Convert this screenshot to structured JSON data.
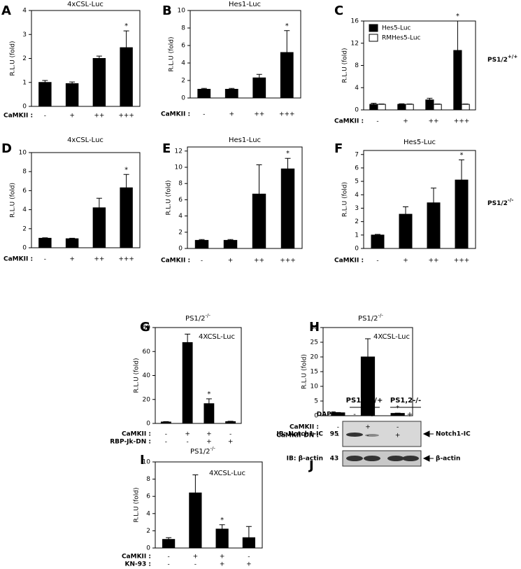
{
  "chart_data": [
    {
      "type": "bar",
      "panel": "A",
      "title": "4xCSL-Luc",
      "ylabel": "R.L.U (fold)",
      "ylim": [
        0,
        4
      ],
      "yticks": [
        0,
        1,
        2,
        3,
        4
      ],
      "series": [
        {
          "color": "#000000",
          "values": [
            1.0,
            0.95,
            2.0,
            2.45
          ],
          "errors": [
            0.08,
            0.07,
            0.1,
            0.7
          ],
          "significance": [
            null,
            null,
            null,
            "*"
          ]
        }
      ],
      "category_rows": [
        {
          "label": "CaMKII :",
          "values": [
            "-",
            "+",
            "++",
            "+++"
          ]
        }
      ]
    },
    {
      "type": "bar",
      "panel": "B",
      "title": "Hes1-Luc",
      "ylabel": "R.L.U (fold)",
      "ylim": [
        0,
        10
      ],
      "yticks": [
        0,
        2,
        4,
        6,
        8,
        10
      ],
      "series": [
        {
          "color": "#000000",
          "values": [
            1.0,
            1.0,
            2.3,
            5.2
          ],
          "errors": [
            0.1,
            0.1,
            0.4,
            2.5
          ],
          "significance": [
            null,
            null,
            null,
            "*"
          ]
        }
      ],
      "category_rows": [
        {
          "label": "CaMKII :",
          "values": [
            "-",
            "+",
            "++",
            "+++"
          ]
        }
      ]
    },
    {
      "type": "bar",
      "panel": "C",
      "ylabel": "R.L.U (fold)",
      "ylim": [
        0,
        16
      ],
      "yticks": [
        0,
        4,
        8,
        12,
        16
      ],
      "series": [
        {
          "name": "Hes5-Luc",
          "color": "#000000",
          "values": [
            1.0,
            1.0,
            1.8,
            10.7
          ],
          "errors": [
            0.2,
            0.1,
            0.3,
            5.3
          ],
          "significance": [
            null,
            null,
            null,
            "*"
          ]
        },
        {
          "name": "RMHes5-Luc",
          "color": "#ffffff",
          "values": [
            1.0,
            1.0,
            1.0,
            1.0
          ],
          "errors": [
            0.05,
            0.05,
            0.05,
            0.05
          ]
        }
      ],
      "category_rows": [
        {
          "label": "CaMKII :",
          "values": [
            "-",
            "+",
            "++",
            "+++"
          ]
        }
      ],
      "side_label": "PS1/2",
      "side_label_sup": "+/+"
    },
    {
      "type": "bar",
      "panel": "D",
      "title": "4xCSL-Luc",
      "ylabel": "R.L.U (fold)",
      "ylim": [
        0,
        10
      ],
      "yticks": [
        0,
        2,
        4,
        6,
        8,
        10
      ],
      "series": [
        {
          "color": "#000000",
          "values": [
            1.0,
            0.95,
            4.2,
            6.3
          ],
          "errors": [
            0.05,
            0.05,
            1.0,
            1.4
          ],
          "significance": [
            null,
            null,
            null,
            "*"
          ]
        }
      ],
      "category_rows": [
        {
          "label": "CaMKII :",
          "values": [
            "-",
            "+",
            "++",
            "+++"
          ]
        }
      ]
    },
    {
      "type": "bar",
      "panel": "E",
      "title": "Hes1-Luc",
      "ylabel": "R.L.U (fold)",
      "ylim": [
        0,
        12.5
      ],
      "yticks": [
        0,
        2,
        4,
        6,
        8,
        10,
        12
      ],
      "series": [
        {
          "color": "#000000",
          "values": [
            1.0,
            1.0,
            6.7,
            9.8
          ],
          "errors": [
            0.1,
            0.1,
            3.6,
            1.3
          ],
          "significance": [
            null,
            null,
            null,
            "*"
          ]
        }
      ],
      "category_rows": [
        {
          "label": "CaMKII :",
          "values": [
            "-",
            "+",
            "++",
            "+++"
          ]
        }
      ]
    },
    {
      "type": "bar",
      "panel": "F",
      "title": "Hes5-Luc",
      "ylabel": "R.L.U (fold)",
      "ylim": [
        0,
        7.3
      ],
      "yticks": [
        0,
        1,
        2,
        3,
        4,
        5,
        6,
        7
      ],
      "series": [
        {
          "color": "#000000",
          "values": [
            1.0,
            2.55,
            3.4,
            5.1
          ],
          "errors": [
            0.05,
            0.55,
            1.1,
            1.5
          ],
          "significance": [
            null,
            null,
            null,
            "*"
          ]
        }
      ],
      "category_rows": [
        {
          "label": "CaMKII :",
          "values": [
            "-",
            "+",
            "++",
            "+++"
          ]
        }
      ],
      "side_label": "PS1/2",
      "side_label_sup": "-/-"
    },
    {
      "type": "bar",
      "panel": "G",
      "title": "PS1/2",
      "title_sup": "-/-",
      "subtitle": "4XCSL-Luc",
      "ylabel": "R.L.U (fold)",
      "ylim": [
        0,
        80
      ],
      "yticks": [
        0,
        20,
        40,
        60,
        80
      ],
      "series": [
        {
          "color": "#000000",
          "values": [
            1.2,
            67.5,
            16.5,
            1.5
          ],
          "errors": [
            0.3,
            7,
            4,
            0.3
          ],
          "significance": [
            null,
            null,
            "*",
            null
          ]
        }
      ],
      "category_rows": [
        {
          "label": "CaMKII :",
          "values": [
            "-",
            "+",
            "+",
            "-"
          ]
        },
        {
          "label": "RBP-Jk-DN :",
          "values": [
            "-",
            "-",
            "+",
            "+"
          ]
        }
      ]
    },
    {
      "type": "bar",
      "panel": "H",
      "title": "PS1/2",
      "title_sup": "-/-",
      "subtitle": "4XCSL-Luc",
      "ylabel": "R.L.U (fold)",
      "ylim": [
        0,
        30
      ],
      "yticks": [
        0,
        5,
        10,
        15,
        20,
        25,
        30
      ],
      "series": [
        {
          "color": "#000000",
          "values": [
            1.0,
            20,
            0.8
          ],
          "errors": [
            0.1,
            6.2,
            0.1
          ],
          "significance": [
            null,
            null,
            "*"
          ]
        }
      ],
      "category_rows": [
        {
          "label": "CaMKII :",
          "values": [
            "-",
            "+",
            "-"
          ]
        },
        {
          "label": "CaMKII-DN :",
          "values": [
            "-",
            "-",
            "+"
          ]
        }
      ]
    },
    {
      "type": "bar",
      "panel": "I",
      "title": "PS1/2",
      "title_sup": "-/-",
      "subtitle": "4XCSL-Luc",
      "ylabel": "R.L.U (fold)",
      "ylim": [
        0,
        10
      ],
      "yticks": [
        0,
        2,
        4,
        6,
        8,
        10
      ],
      "series": [
        {
          "color": "#000000",
          "values": [
            1.0,
            6.4,
            2.2,
            1.2
          ],
          "errors": [
            0.2,
            2.1,
            0.5,
            1.3
          ],
          "significance": [
            null,
            null,
            "*",
            null
          ]
        }
      ],
      "category_rows": [
        {
          "label": "CaMKII :",
          "values": [
            "-",
            "+",
            "+",
            "-"
          ]
        },
        {
          "label": "KN-93 :",
          "values": [
            "-",
            "-",
            "+",
            "+"
          ]
        }
      ]
    }
  ],
  "blot": {
    "panel": "J",
    "groups": [
      "PS1,2+/+",
      "PS1,2-/-"
    ],
    "treatment": "DAPT:",
    "lanes": [
      "-",
      "+",
      "-",
      "+"
    ],
    "rows": [
      {
        "label": "IB: Notch1-IC",
        "size": "95",
        "target": "Notch1-IC"
      },
      {
        "label": "IB: β-actin",
        "size": "43",
        "target": "β-actin"
      }
    ]
  }
}
